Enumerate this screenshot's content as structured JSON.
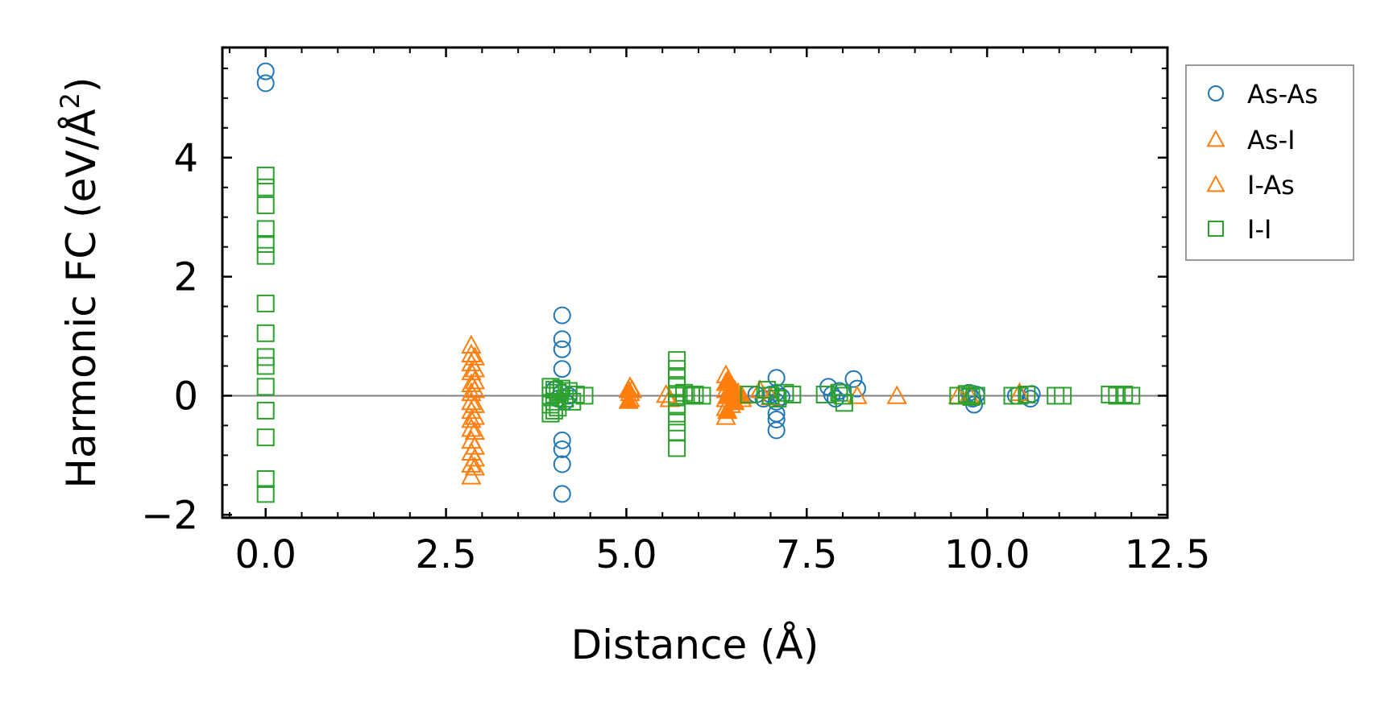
{
  "chart_data": {
    "type": "scatter",
    "title": "",
    "xlabel": "Distance (Å)",
    "ylabel": "Harmonic FC (eV/Å",
    "ylabel_superscript": "2",
    "ylabel_close": ")",
    "xlim": [
      -0.6,
      12.5
    ],
    "ylim": [
      -2.05,
      5.85
    ],
    "x_ticks": [
      0.0,
      2.5,
      5.0,
      7.5,
      10.0,
      12.5
    ],
    "x_tick_labels": [
      "0.0",
      "2.5",
      "5.0",
      "7.5",
      "10.0",
      "12.5"
    ],
    "y_ticks": [
      -2,
      0,
      2,
      4
    ],
    "y_tick_labels": [
      "−2",
      "0",
      "2",
      "4"
    ],
    "grid": false,
    "zero_line": true,
    "legend_position": "outside-right",
    "series": [
      {
        "name": "As-As",
        "marker": "circle",
        "color": "#1f77b4",
        "points": [
          [
            0,
            5.45
          ],
          [
            0,
            5.25
          ],
          [
            4.11,
            1.35
          ],
          [
            4.11,
            0.95
          ],
          [
            4.11,
            0.78
          ],
          [
            4.11,
            0.45
          ],
          [
            4.11,
            -0.75
          ],
          [
            4.11,
            -0.9
          ],
          [
            4.11,
            -1.15
          ],
          [
            4.11,
            -1.65
          ],
          [
            4.0,
            0.1
          ],
          [
            4.05,
            -0.05
          ],
          [
            4.1,
            0.05
          ],
          [
            4.15,
            -0.1
          ],
          [
            4.2,
            0.0
          ],
          [
            6.8,
            0.02
          ],
          [
            6.9,
            -0.05
          ],
          [
            7.08,
            0.3
          ],
          [
            7.08,
            0.05
          ],
          [
            7.08,
            -0.1
          ],
          [
            7.08,
            -0.3
          ],
          [
            7.08,
            -0.4
          ],
          [
            7.08,
            -0.58
          ],
          [
            7.0,
            0.02
          ],
          [
            7.15,
            -0.02
          ],
          [
            7.8,
            0.15
          ],
          [
            7.85,
            0.02
          ],
          [
            7.9,
            -0.05
          ],
          [
            7.95,
            0.08
          ],
          [
            8.15,
            0.28
          ],
          [
            8.2,
            0.12
          ],
          [
            9.75,
            0.05
          ],
          [
            9.8,
            -0.05
          ],
          [
            9.82,
            -0.15
          ],
          [
            9.85,
            0.02
          ],
          [
            10.4,
            0.0
          ],
          [
            10.6,
            -0.05
          ],
          [
            10.62,
            0.03
          ]
        ]
      },
      {
        "name": "As-I",
        "marker": "triangle",
        "color": "#ff7f0e",
        "points": [
          [
            2.85,
            0.85
          ],
          [
            2.85,
            0.7
          ],
          [
            2.85,
            0.55
          ],
          [
            2.85,
            0.4
          ],
          [
            2.85,
            0.2
          ],
          [
            2.85,
            0.05
          ],
          [
            2.85,
            -0.1
          ],
          [
            2.85,
            -0.25
          ],
          [
            2.85,
            -0.4
          ],
          [
            2.85,
            -0.55
          ],
          [
            2.85,
            -0.75
          ],
          [
            2.85,
            -0.95
          ],
          [
            2.85,
            -1.15
          ],
          [
            2.85,
            -1.35
          ],
          [
            2.9,
            0.65
          ],
          [
            2.9,
            0.45
          ],
          [
            2.9,
            0.25
          ],
          [
            2.9,
            0.1
          ],
          [
            2.9,
            -0.15
          ],
          [
            2.9,
            -0.35
          ],
          [
            2.9,
            -0.6
          ],
          [
            2.9,
            -0.85
          ],
          [
            2.9,
            -1.05
          ],
          [
            2.9,
            -1.2
          ],
          [
            5.05,
            0.15
          ],
          [
            5.05,
            0.05
          ],
          [
            5.05,
            -0.05
          ],
          [
            5.08,
            0.1
          ],
          [
            5.55,
            0.02
          ],
          [
            5.6,
            -0.05
          ],
          [
            6.38,
            0.35
          ],
          [
            6.38,
            0.22
          ],
          [
            6.38,
            0.1
          ],
          [
            6.38,
            -0.05
          ],
          [
            6.38,
            -0.2
          ],
          [
            6.38,
            -0.35
          ],
          [
            6.45,
            0.15
          ],
          [
            6.45,
            -0.15
          ],
          [
            6.55,
            0.05
          ],
          [
            6.6,
            -0.05
          ],
          [
            6.85,
            0.1
          ],
          [
            7.0,
            -0.02
          ],
          [
            8.2,
            0.0
          ],
          [
            8.75,
            0.0
          ],
          [
            9.6,
            0.0
          ],
          [
            9.75,
            0.02
          ],
          [
            10.45,
            0.05
          ]
        ]
      },
      {
        "name": "I-As",
        "marker": "triangle-filled",
        "color": "#ff7f0e",
        "points": [
          [
            5.03,
            0.1
          ],
          [
            5.03,
            -0.08
          ],
          [
            6.4,
            0.25
          ],
          [
            6.4,
            0.0
          ],
          [
            6.4,
            -0.25
          ],
          [
            6.5,
            0.1
          ],
          [
            6.5,
            -0.1
          ],
          [
            6.6,
            0.0
          ]
        ]
      },
      {
        "name": "I-I",
        "marker": "square",
        "color": "#2ca02c",
        "points": [
          [
            0,
            3.7
          ],
          [
            0,
            3.5
          ],
          [
            0,
            3.2
          ],
          [
            0,
            2.8
          ],
          [
            0,
            2.55
          ],
          [
            0,
            2.35
          ],
          [
            0,
            1.55
          ],
          [
            0,
            1.05
          ],
          [
            0,
            0.65
          ],
          [
            0,
            0.5
          ],
          [
            0,
            0.15
          ],
          [
            0,
            -0.25
          ],
          [
            0,
            -0.7
          ],
          [
            0,
            -1.4
          ],
          [
            0,
            -1.65
          ],
          [
            3.95,
            0.15
          ],
          [
            3.95,
            0.0
          ],
          [
            3.95,
            -0.15
          ],
          [
            3.95,
            -0.3
          ],
          [
            4.0,
            0.1
          ],
          [
            4.0,
            -0.1
          ],
          [
            4.0,
            -0.25
          ],
          [
            4.05,
            0.05
          ],
          [
            4.05,
            -0.2
          ],
          [
            4.1,
            0.12
          ],
          [
            4.15,
            -0.05
          ],
          [
            4.2,
            0.08
          ],
          [
            4.25,
            -0.1
          ],
          [
            4.3,
            0.02
          ],
          [
            4.42,
            0.0
          ],
          [
            5.7,
            0.6
          ],
          [
            5.7,
            0.45
          ],
          [
            5.7,
            0.3
          ],
          [
            5.7,
            0.15
          ],
          [
            5.7,
            0.0
          ],
          [
            5.7,
            -0.15
          ],
          [
            5.7,
            -0.3
          ],
          [
            5.7,
            -0.45
          ],
          [
            5.7,
            -0.62
          ],
          [
            5.7,
            -0.88
          ],
          [
            5.8,
            0.05
          ],
          [
            5.9,
            0.0
          ],
          [
            5.95,
            0.02
          ],
          [
            6.05,
            0.0
          ],
          [
            6.7,
            0.02
          ],
          [
            6.95,
            0.1
          ],
          [
            7.0,
            0.0
          ],
          [
            7.1,
            -0.05
          ],
          [
            7.2,
            0.05
          ],
          [
            7.3,
            0.02
          ],
          [
            7.75,
            0.02
          ],
          [
            7.95,
            0.05
          ],
          [
            8.0,
            0.0
          ],
          [
            8.02,
            -0.12
          ],
          [
            9.6,
            0.0
          ],
          [
            9.72,
            0.03
          ],
          [
            9.78,
            -0.02
          ],
          [
            9.85,
            0.0
          ],
          [
            10.35,
            0.0
          ],
          [
            10.45,
            0.0
          ],
          [
            10.55,
            0.02
          ],
          [
            10.95,
            0.0
          ],
          [
            11.05,
            0.0
          ],
          [
            11.7,
            0.02
          ],
          [
            11.8,
            0.0
          ],
          [
            11.9,
            0.02
          ],
          [
            12.0,
            0.0
          ]
        ]
      }
    ]
  }
}
